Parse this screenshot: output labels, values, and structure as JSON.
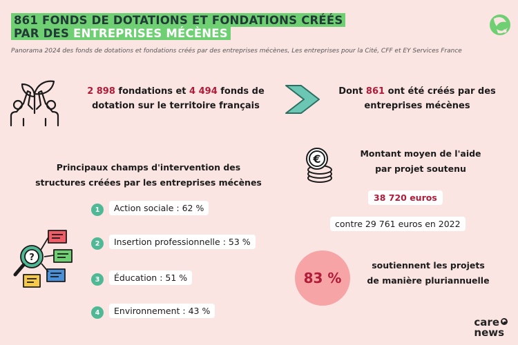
{
  "header": {
    "title_line1": "861 fonds de dotations et fondations créés",
    "title_line2_prefix": "par des ",
    "title_line2_highlight": "entreprises mécènes",
    "source": "Panorama 2024 des fonds de dotations et fondations créés par des entreprises mécènes, Les entreprises pour la Cité, CFF et EY Services France"
  },
  "stat1": {
    "fondations_count": "2 898",
    "fondations_label": " fondations et ",
    "fonds_count": "4 494",
    "fonds_label": " fonds de",
    "line2": "dotation sur le territoire français"
  },
  "stat2": {
    "prefix": "Dont ",
    "count": "861",
    "suffix": " ont été créés par des",
    "line2": "entreprises mécènes"
  },
  "fields": {
    "heading_line1": "Principaux champs d'intervention des",
    "heading_line2": "structures créées par les entreprises mécènes",
    "items": [
      {
        "num": "1",
        "label": "Action sociale : 62 %"
      },
      {
        "num": "2",
        "label": "Insertion professionnelle : 53 %"
      },
      {
        "num": "3",
        "label": "Éducation : 51 %"
      },
      {
        "num": "4",
        "label": "Environnement : 43 %"
      }
    ]
  },
  "aid": {
    "heading_line1": "Montant moyen de l'aide",
    "heading_line2": "par projet soutenu",
    "amount": "38 720 euros",
    "comparison": "contre 29 761 euros en 2022"
  },
  "multiyear": {
    "percent": "83 %",
    "line1": "soutiennent les projets",
    "line2": "de manière pluriannuelle"
  },
  "brand": {
    "line1": "care",
    "line2": "news"
  },
  "colors": {
    "background": "#fbe5e2",
    "title_highlight": "#6fcf73",
    "accent_red": "#b01b38",
    "number_green": "#4fb894",
    "percent_circle": "#f7a4a6"
  },
  "icons": [
    "plant-hands-icon",
    "chevron-arrow-icon",
    "coins-euro-icon",
    "magnifier-documents-icon",
    "logo-swirl-icon"
  ]
}
